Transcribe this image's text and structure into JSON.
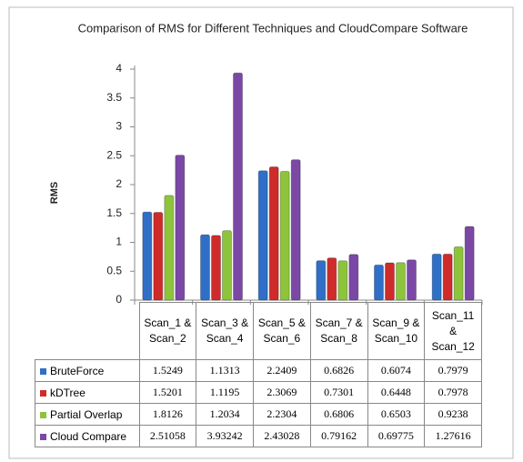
{
  "chart_data": {
    "type": "bar",
    "title": "Comparison of RMS for Different Techniques and CloudCompare Software",
    "y_label": "RMS",
    "categories": [
      "Scan_1 & Scan_2",
      "Scan_3 & Scan_4",
      "Scan_5 & Scan_6",
      "Scan_7 & Scan_8",
      "Scan_9 & Scan_10",
      "Scan_11 & Scan_12"
    ],
    "series": [
      {
        "name": "BruteForce",
        "color": "#2f6fc7",
        "values": [
          1.5249,
          1.1313,
          2.2409,
          0.6826,
          0.6074,
          0.7979
        ]
      },
      {
        "name": "kDTree",
        "color": "#cf2b2b",
        "values": [
          1.5201,
          1.1195,
          2.3069,
          0.7301,
          0.6448,
          0.7978
        ]
      },
      {
        "name": "Partial Overlap",
        "color": "#8dc43c",
        "values": [
          1.8126,
          1.2034,
          2.2304,
          0.6806,
          0.6503,
          0.9238
        ]
      },
      {
        "name": "Cloud Compare",
        "color": "#7b48a6",
        "values": [
          2.51058,
          3.93242,
          2.43028,
          0.79162,
          0.69775,
          1.27616
        ]
      }
    ],
    "ylim": [
      0,
      4
    ],
    "yticks": [
      0,
      0.5,
      1,
      1.5,
      2,
      2.5,
      3,
      3.5,
      4
    ],
    "data_table": true
  }
}
